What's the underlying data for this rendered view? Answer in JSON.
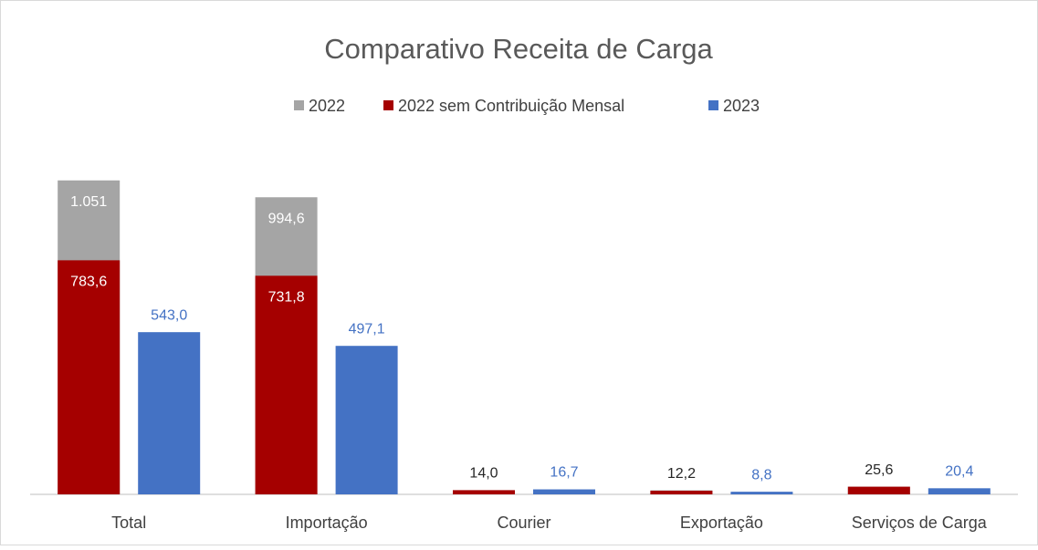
{
  "chart_data": {
    "type": "bar",
    "title": "Comparativo Receita de Carga",
    "categories": [
      "Total",
      "Importação",
      "Courier",
      "Exportação",
      "Serviços de Carga"
    ],
    "series": [
      {
        "name": "2022",
        "color": "#a5a5a5",
        "values": [
          1051,
          994.6,
          14.0,
          13.5,
          25.6
        ],
        "value_labels": [
          "1.051",
          "994,6",
          null,
          null,
          null
        ]
      },
      {
        "name": "2022 sem Contribuição Mensal",
        "color": "#a50000",
        "values": [
          783.6,
          731.8,
          14.0,
          12.2,
          25.6
        ],
        "value_labels": [
          "783,6",
          "731,8",
          "14,0",
          "12,2",
          "25,6"
        ]
      },
      {
        "name": "2023",
        "color": "#4472c4",
        "values": [
          543.0,
          497.1,
          16.7,
          8.8,
          20.4
        ],
        "value_labels": [
          "543,0",
          "497,1",
          "16,7",
          "8,8",
          "20,4"
        ]
      }
    ],
    "ylim": [
      0,
      1200
    ],
    "legend": "top"
  }
}
